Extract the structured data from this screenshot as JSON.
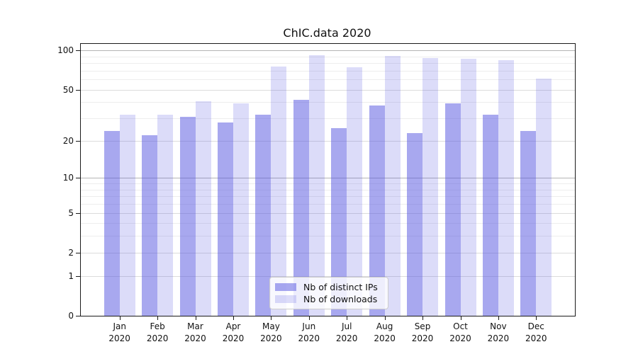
{
  "chart_data": {
    "type": "bar",
    "title": "ChIC.data 2020",
    "categories": [
      "Jan",
      "Feb",
      "Mar",
      "Apr",
      "May",
      "Jun",
      "Jul",
      "Aug",
      "Sep",
      "Oct",
      "Nov",
      "Dec"
    ],
    "category_year": "2020",
    "series": [
      {
        "name": "Nb of distinct IPs",
        "color": "rgba(81,81,223,0.5)",
        "solid_color_on_white": "#a8a8ef",
        "values": [
          24,
          22,
          31,
          28,
          32,
          42,
          25,
          38,
          23,
          39,
          32,
          24
        ]
      },
      {
        "name": "Nb of downloads",
        "color": "rgba(81,81,223,0.2)",
        "solid_color_on_white": "#dcdcf9",
        "values": [
          32,
          32,
          41,
          39,
          75,
          92,
          74,
          91,
          87,
          86,
          84,
          61
        ]
      }
    ],
    "y_axis": {
      "scale": "symlog",
      "ticks": [
        0,
        1,
        2,
        5,
        10,
        20,
        50,
        100
      ],
      "minor_gridlines": [
        3,
        4,
        6,
        7,
        8,
        9,
        30,
        40,
        60,
        70,
        80,
        90
      ],
      "ylim": [
        0,
        105
      ]
    },
    "xlabel": "",
    "ylabel": "",
    "grid": true,
    "legend_position": "lower center"
  }
}
